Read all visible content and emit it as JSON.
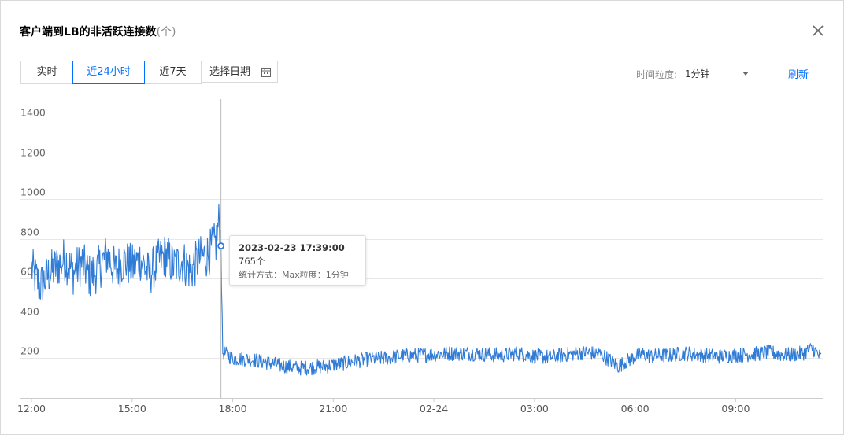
{
  "dialog": {
    "title": "客户端到LB的非活跃连接数",
    "title_unit": "(个)"
  },
  "toolbar": {
    "tabs": [
      {
        "label": "实时",
        "active": false
      },
      {
        "label": "近24小时",
        "active": true
      },
      {
        "label": "近7天",
        "active": false
      },
      {
        "label": "选择日期",
        "active": false
      }
    ],
    "granularity_label": "时间粒度:",
    "granularity_value": "1分钟",
    "refresh_label": "刷新"
  },
  "tooltip": {
    "time": "2023-02-23 17:39:00",
    "value": "765个",
    "method": "统计方式：Max粒度：1分钟"
  },
  "colors": {
    "accent": "#006eff",
    "series": "#2f7bd6",
    "grid": "#e8e8e8"
  },
  "chart_data": {
    "type": "line",
    "ylim": [
      0,
      1400
    ],
    "yticks": [
      200,
      400,
      600,
      800,
      1000,
      1200,
      1400
    ],
    "x_tick_labels": [
      "12:00",
      "15:00",
      "18:00",
      "21:00",
      "02-24",
      "03:00",
      "06:00",
      "09:00"
    ],
    "x_tick_hours": [
      0,
      3,
      6,
      9,
      12,
      15,
      18,
      21
    ],
    "x_range_hours": [
      0,
      23.55
    ],
    "grid": true,
    "hover": {
      "hour": 5.65,
      "value": 765
    },
    "series": [
      {
        "points_hours": [
          0,
          0.25,
          0.5,
          0.75,
          1.0,
          1.25,
          1.5,
          1.75,
          2.0,
          2.25,
          2.5,
          2.75,
          3.0,
          3.25,
          3.5,
          3.75,
          4.0,
          4.25,
          4.5,
          4.75,
          5.0,
          5.25,
          5.5,
          5.6,
          5.65,
          5.7,
          6.0,
          6.5,
          7.0,
          7.5,
          8.0,
          8.5,
          9.0,
          9.5,
          10.0,
          10.5,
          11.0,
          11.5,
          12.0,
          12.5,
          13.0,
          13.5,
          14.0,
          14.5,
          15.0,
          15.5,
          16.0,
          16.5,
          17.0,
          17.5,
          17.9,
          18.2,
          18.5,
          19.0,
          19.5,
          20.0,
          20.5,
          21.0,
          21.5,
          22.0,
          22.5,
          23.0,
          23.3,
          23.55
        ],
        "values": [
          650,
          560,
          620,
          660,
          700,
          630,
          680,
          610,
          650,
          720,
          640,
          690,
          660,
          700,
          620,
          680,
          720,
          660,
          690,
          640,
          700,
          720,
          780,
          900,
          765,
          230,
          200,
          195,
          180,
          160,
          150,
          155,
          165,
          180,
          195,
          200,
          210,
          215,
          220,
          225,
          225,
          220,
          215,
          225,
          210,
          205,
          220,
          230,
          220,
          160,
          200,
          220,
          210,
          215,
          225,
          215,
          210,
          215,
          220,
          230,
          215,
          225,
          250,
          200
        ]
      }
    ]
  }
}
